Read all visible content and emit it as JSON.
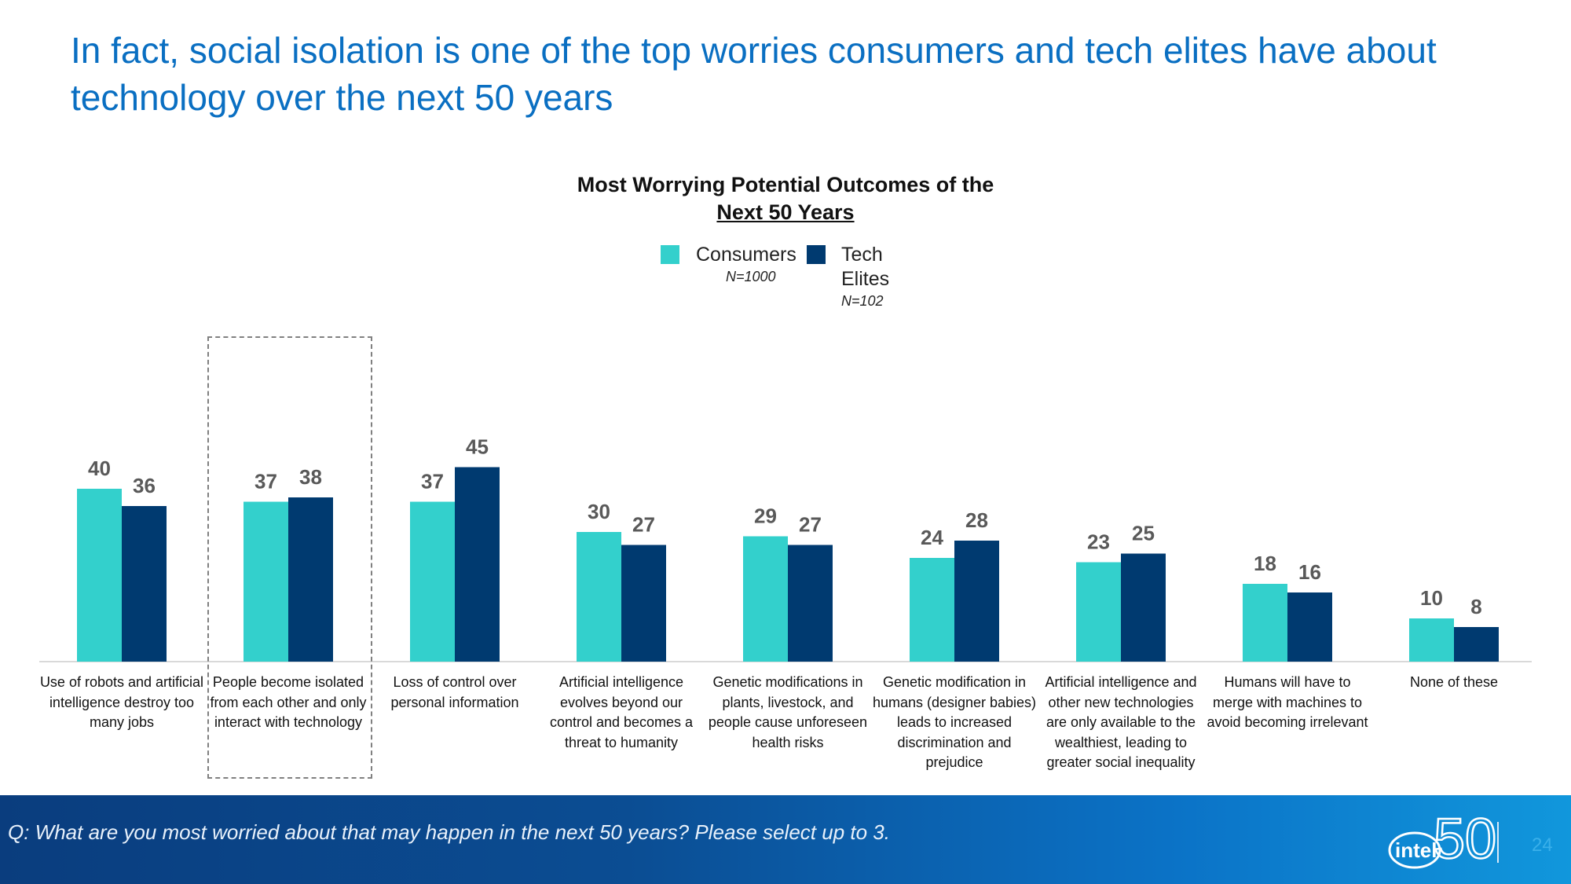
{
  "slide": {
    "title": "In fact, social isolation is one of the top worries consumers and tech elites have about technology over the next 50 years"
  },
  "legend": {
    "consumers_label": "Consumers",
    "consumers_n": "N=1000",
    "elites_label_1": "Tech",
    "elites_label_2": "Elites",
    "elites_n": "N=102"
  },
  "footer": {
    "question": "Q: What are you most worried about that may happen in the next 50 years? Please select up to 3.",
    "logo_text": "intel",
    "logo_number": "50",
    "page_number": "24"
  },
  "colors": {
    "consumers": "#33d0cc",
    "tech_elites": "#003a70",
    "value_label": "#595959",
    "axis": "#d9d9d9",
    "title": "#0a6fc2"
  },
  "chart_data": {
    "type": "bar",
    "title": "Most Worrying Potential Outcomes of the",
    "subtitle": "Next 50 Years",
    "categories": [
      "Use of robots and artificial intelligence destroy too many jobs",
      "People become isolated from each other and only interact with technology",
      "Loss of control over personal information",
      "Artificial intelligence evolves beyond our control and becomes a threat to humanity",
      "Genetic modifications in plants, livestock, and people cause unforeseen health risks",
      "Genetic modification in humans (designer babies) leads to increased discrimination and prejudice",
      "Artificial intelligence and other new technologies are only available to the wealthiest, leading to greater social inequality",
      "Humans will have to merge with machines to avoid becoming irrelevant",
      "None of these"
    ],
    "series": [
      {
        "name": "Consumers",
        "values": [
          40,
          37,
          37,
          30,
          29,
          24,
          23,
          18,
          10
        ]
      },
      {
        "name": "Tech Elites",
        "values": [
          36,
          38,
          45,
          27,
          27,
          28,
          25,
          16,
          8
        ]
      }
    ],
    "ylim": [
      0,
      45
    ],
    "highlighted_category": "People become isolated from each other and only interact with technology"
  }
}
